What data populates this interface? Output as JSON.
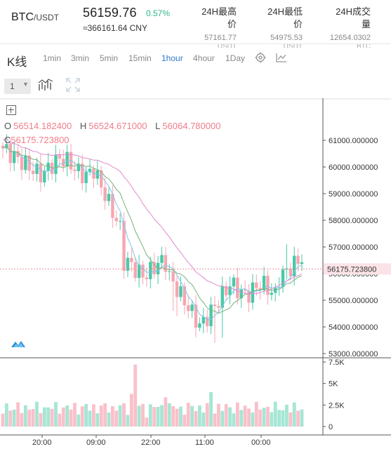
{
  "header": {
    "pair": "BTC",
    "quote": "/USDT",
    "last_price": "56159.76",
    "change": "0.57%",
    "cny": "≈366161.64  CNY",
    "high_label_1": "24H最高",
    "high_label_2": "价",
    "high_value": "57161.77",
    "high_unit": "USDT",
    "low_label_1": "24H最低",
    "low_label_2": "价",
    "low_value": "54975.53",
    "low_unit": "USDT",
    "vol_label_1": "24H成交",
    "vol_label_2": "量",
    "vol_value": "12654.0302",
    "vol_unit": "BTC"
  },
  "tabs": {
    "title": "K线",
    "items": [
      "1min",
      "3min",
      "5min",
      "15min",
      "1hour",
      "4hour",
      "1Day"
    ],
    "active": "1hour"
  },
  "toolbar": {
    "interval_select": "1"
  },
  "colors": {
    "up": "#48c9a9",
    "down": "#f7a6b1",
    "accent": "#2a7ac9",
    "ma1": "#7fc5e8",
    "ma2": "#78b27a",
    "ma3": "#e28ad0"
  },
  "ohlc": {
    "o_label": "O",
    "o_value": "56514.182400",
    "h_label": "H",
    "h_value": "56524.671000",
    "l_label": "L",
    "l_value": "56064.780000",
    "c_label": "C",
    "c_value": "56175.723800"
  },
  "price_axis": [
    "61000.000000",
    "60000.000000",
    "59000.000000",
    "58000.000000",
    "57000.000000",
    "56000.000000",
    "55000.000000",
    "54000.000000",
    "53000.000000"
  ],
  "current_price_tag": "56175.723800",
  "volume_axis": [
    "7.5K",
    "5K",
    "2.5K",
    "0"
  ],
  "time_axis": [
    "20:00",
    "09:00",
    "22:00",
    "11:00",
    "00:00"
  ]
}
